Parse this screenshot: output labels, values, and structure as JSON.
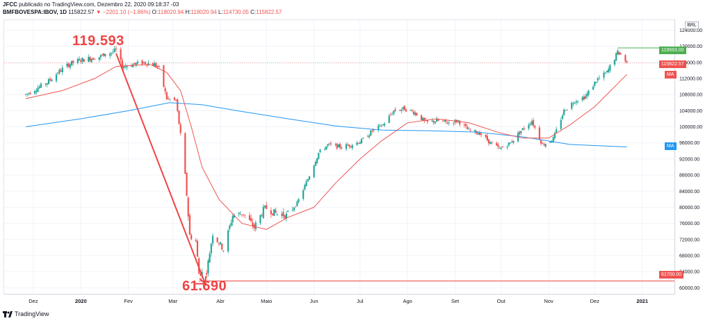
{
  "header": {
    "publisher_line": "JFCC publicado no TradingView.com, Dezembro 22, 2020 09:18:37 -03",
    "publisher": "JFCC",
    "symbol": "BMFBOVESPA:IBOV, 1D",
    "last": "115822.57",
    "change": "▼ −2201.10 (−1.86%)",
    "o_label": "O:",
    "o_value": "118020.94",
    "h_label": "H:",
    "h_value": "118020.94",
    "l_label": "L:",
    "l_value": "114730.05",
    "c_label": "C:",
    "c_value": "115822.57"
  },
  "currency": "BRL",
  "brand": "TradingView",
  "annotations": {
    "high_label": "119.593",
    "low_label": "61.690"
  },
  "price_tags": {
    "high": "119593.00",
    "last": "115822.57",
    "low": "61700.00",
    "ma_short": "MA",
    "ma_long": "MA"
  },
  "colors": {
    "up": "#26a69a",
    "down": "#ef5350",
    "ma_short": "#ef5350",
    "ma_long": "#2196f3",
    "annotation": "#ef4444",
    "high_line": "#4caf50",
    "grid": "#f0f3fa"
  },
  "chart_data": {
    "type": "candlestick",
    "y_ticks": [
      60000,
      64000,
      68000,
      72000,
      76000,
      80000,
      84000,
      88000,
      92000,
      96000,
      100000,
      104000,
      108000,
      112000,
      116000,
      120000,
      124000
    ],
    "y_tick_labels": [
      "60000.00",
      "64000.00",
      "68000.00",
      "72000.00",
      "76000.00",
      "80000.00",
      "84000.00",
      "88000.00",
      "92000.00",
      "96000.00",
      "100000.00",
      "104000.00",
      "108000.00",
      "112000.00",
      "116000.00",
      "120000.00",
      "124000.00"
    ],
    "ylim": [
      58500,
      126500
    ],
    "x_ticks": [
      "Dez",
      "2020",
      "Fev",
      "Mar",
      "Abr",
      "Maio",
      "Jun",
      "Jul",
      "Ago",
      "Set",
      "Out",
      "Nov",
      "Dez",
      "2021"
    ],
    "x_bold_ticks": [
      "2020",
      "2021"
    ],
    "close_path": [
      [
        "2019-11-26",
        108000
      ],
      [
        "2019-12-03",
        109500
      ],
      [
        "2019-12-10",
        111000
      ],
      [
        "2019-12-17",
        113500
      ],
      [
        "2019-12-24",
        115500
      ],
      [
        "2019-12-31",
        116500
      ],
      [
        "2020-01-07",
        117000
      ],
      [
        "2020-01-14",
        117500
      ],
      [
        "2020-01-21",
        118500
      ],
      [
        "2020-01-24",
        119000
      ],
      [
        "2020-01-28",
        115000
      ],
      [
        "2020-02-04",
        115500
      ],
      [
        "2020-02-11",
        116000
      ],
      [
        "2020-02-18",
        115500
      ],
      [
        "2020-02-21",
        114500
      ],
      [
        "2020-02-26",
        107000
      ],
      [
        "2020-03-03",
        106500
      ],
      [
        "2020-03-06",
        98000
      ],
      [
        "2020-03-09",
        88000
      ],
      [
        "2020-03-12",
        73000
      ],
      [
        "2020-03-16",
        71500
      ],
      [
        "2020-03-18",
        63500
      ],
      [
        "2020-03-23",
        64000
      ],
      [
        "2020-03-27",
        73500
      ],
      [
        "2020-04-03",
        69500
      ],
      [
        "2020-04-09",
        78000
      ],
      [
        "2020-04-16",
        78500
      ],
      [
        "2020-04-23",
        75000
      ],
      [
        "2020-04-30",
        80000
      ],
      [
        "2020-05-07",
        78500
      ],
      [
        "2020-05-14",
        78000
      ],
      [
        "2020-05-21",
        81000
      ],
      [
        "2020-05-28",
        87000
      ],
      [
        "2020-06-04",
        93500
      ],
      [
        "2020-06-10",
        95500
      ],
      [
        "2020-06-18",
        95000
      ],
      [
        "2020-06-25",
        95500
      ],
      [
        "2020-07-02",
        96500
      ],
      [
        "2020-07-09",
        99000
      ],
      [
        "2020-07-16",
        100500
      ],
      [
        "2020-07-23",
        104000
      ],
      [
        "2020-07-30",
        104500
      ],
      [
        "2020-08-06",
        103500
      ],
      [
        "2020-08-13",
        101000
      ],
      [
        "2020-08-20",
        101500
      ],
      [
        "2020-08-27",
        101000
      ],
      [
        "2020-09-03",
        101500
      ],
      [
        "2020-09-10",
        99000
      ],
      [
        "2020-09-17",
        98500
      ],
      [
        "2020-09-24",
        96000
      ],
      [
        "2020-09-30",
        94500
      ],
      [
        "2020-10-07",
        96000
      ],
      [
        "2020-10-14",
        99000
      ],
      [
        "2020-10-21",
        101500
      ],
      [
        "2020-10-28",
        95500
      ],
      [
        "2020-11-04",
        97000
      ],
      [
        "2020-11-11",
        104000
      ],
      [
        "2020-11-18",
        106500
      ],
      [
        "2020-11-25",
        107500
      ],
      [
        "2020-12-02",
        111500
      ],
      [
        "2020-12-09",
        113500
      ],
      [
        "2020-12-16",
        118500
      ],
      [
        "2020-12-18",
        118000
      ],
      [
        "2020-12-22",
        115822
      ]
    ],
    "ma_long_path": [
      [
        "2019-11-26",
        100000
      ],
      [
        "2020-01-01",
        102000
      ],
      [
        "2020-02-01",
        104000
      ],
      [
        "2020-02-28",
        106000
      ],
      [
        "2020-03-20",
        105500
      ],
      [
        "2020-04-15",
        103800
      ],
      [
        "2020-05-15",
        102000
      ],
      [
        "2020-06-15",
        100200
      ],
      [
        "2020-07-15",
        99200
      ],
      [
        "2020-08-15",
        99000
      ],
      [
        "2020-09-15",
        98700
      ],
      [
        "2020-10-15",
        97500
      ],
      [
        "2020-11-15",
        95600
      ],
      [
        "2020-12-22",
        95000
      ]
    ],
    "ma_short_path": [
      [
        "2019-11-26",
        107000
      ],
      [
        "2019-12-20",
        109000
      ],
      [
        "2020-01-10",
        112000
      ],
      [
        "2020-01-24",
        115000
      ],
      [
        "2020-02-15",
        115500
      ],
      [
        "2020-02-26",
        113500
      ],
      [
        "2020-03-06",
        109000
      ],
      [
        "2020-03-13",
        100000
      ],
      [
        "2020-03-20",
        90000
      ],
      [
        "2020-03-31",
        82000
      ],
      [
        "2020-04-15",
        76000
      ],
      [
        "2020-05-01",
        74500
      ],
      [
        "2020-05-15",
        77500
      ],
      [
        "2020-06-01",
        80000
      ],
      [
        "2020-06-15",
        86000
      ],
      [
        "2020-07-01",
        92000
      ],
      [
        "2020-07-15",
        96500
      ],
      [
        "2020-08-01",
        101000
      ],
      [
        "2020-08-20",
        102000
      ],
      [
        "2020-09-10",
        101000
      ],
      [
        "2020-09-30",
        98500
      ],
      [
        "2020-10-15",
        97200
      ],
      [
        "2020-11-01",
        97200
      ],
      [
        "2020-11-15",
        100500
      ],
      [
        "2020-12-01",
        105000
      ],
      [
        "2020-12-22",
        113000
      ]
    ],
    "high": {
      "date": "2020-01-24",
      "value": 119593
    },
    "low": {
      "date": "2020-03-23",
      "value": 61690
    },
    "low_line": 61700,
    "high_line": 119593,
    "last": 115822.57
  }
}
